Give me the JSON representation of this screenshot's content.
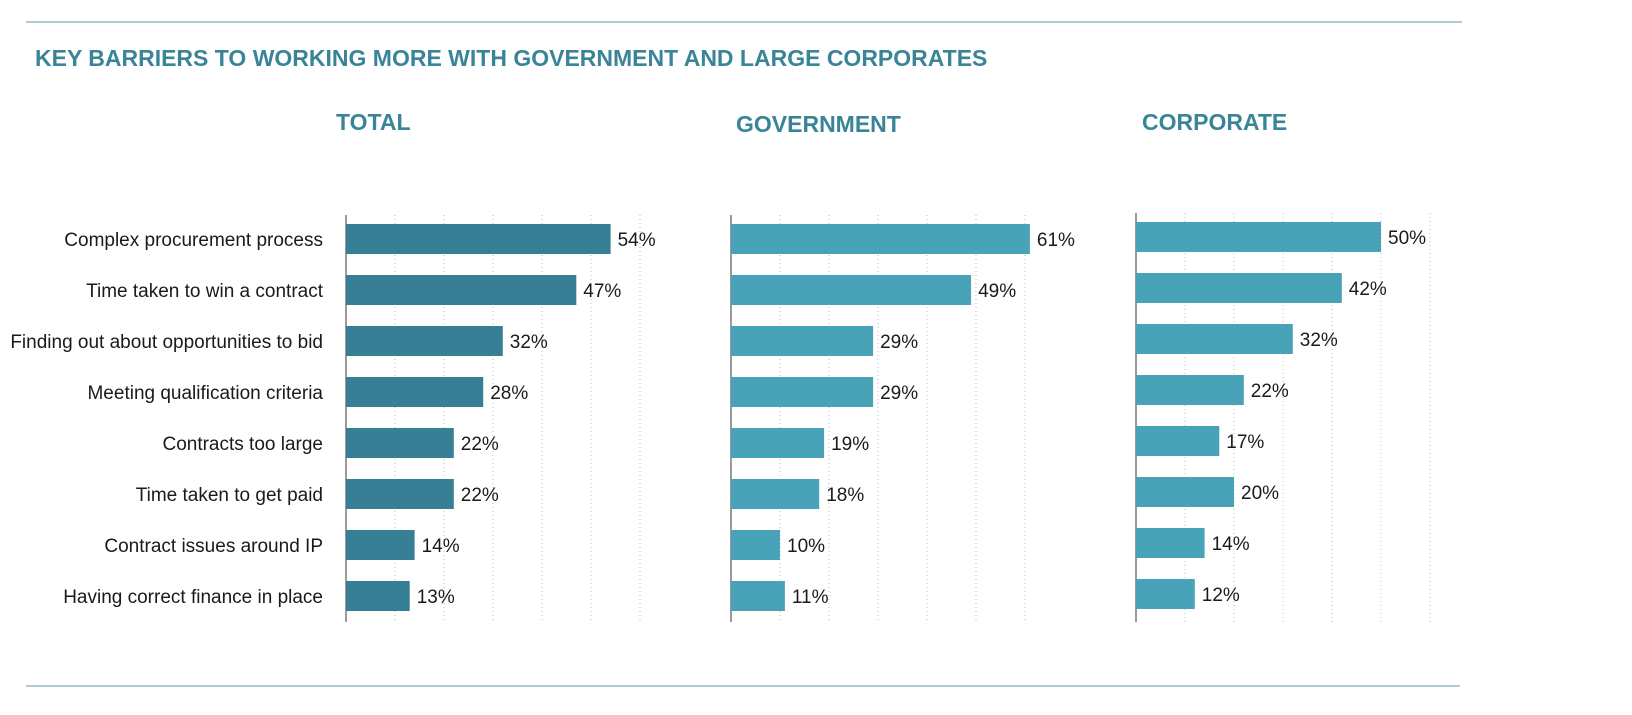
{
  "title": "KEY BARRIERS TO WORKING MORE WITH GOVERNMENT AND LARGE CORPORATES",
  "colors": {
    "title": "#3a8498",
    "total_bar": "#367f95",
    "segment_bar": "#48a2b8",
    "rule": "#5a9bb0"
  },
  "chart_data": [
    {
      "type": "bar",
      "orientation": "horizontal",
      "title": "TOTAL",
      "categories": [
        "Complex procurement process",
        "Time taken to win a contract",
        "Finding out about opportunities to bid",
        "Meeting qualification criteria",
        "Contracts too large",
        "Time taken to get paid",
        "Contract issues around IP",
        "Having correct finance in place"
      ],
      "values": [
        54,
        47,
        32,
        28,
        22,
        22,
        14,
        13
      ],
      "labels": [
        "54%",
        "47%",
        "32%",
        "28%",
        "22%",
        "22%",
        "14%",
        "13%"
      ],
      "xlim": [
        0,
        60
      ],
      "grid": true,
      "color": "#367f95"
    },
    {
      "type": "bar",
      "orientation": "horizontal",
      "title": "GOVERNMENT",
      "categories": [
        "Complex procurement process",
        "Time taken to win a contract",
        "Finding out about opportunities to bid",
        "Meeting qualification criteria",
        "Contracts too large",
        "Time taken to get paid",
        "Contract issues around IP",
        "Having correct finance in place"
      ],
      "values": [
        61,
        49,
        29,
        29,
        19,
        18,
        10,
        11
      ],
      "labels": [
        "61%",
        "49%",
        "29%",
        "29%",
        "19%",
        "18%",
        "10%",
        "11%"
      ],
      "xlim": [
        0,
        60
      ],
      "grid": true,
      "color": "#48a2b8"
    },
    {
      "type": "bar",
      "orientation": "horizontal",
      "title": "CORPORATE",
      "categories": [
        "Complex procurement process",
        "Time taken to win a contract",
        "Finding out about opportunities to bid",
        "Meeting qualification criteria",
        "Contracts too large",
        "Time taken to get paid",
        "Contract issues around IP",
        "Having correct finance in place"
      ],
      "values": [
        50,
        42,
        32,
        22,
        17,
        20,
        14,
        12
      ],
      "labels": [
        "50%",
        "42%",
        "32%",
        "22%",
        "17%",
        "20%",
        "14%",
        "12%"
      ],
      "xlim": [
        0,
        60
      ],
      "grid": true,
      "color": "#48a2b8"
    }
  ]
}
